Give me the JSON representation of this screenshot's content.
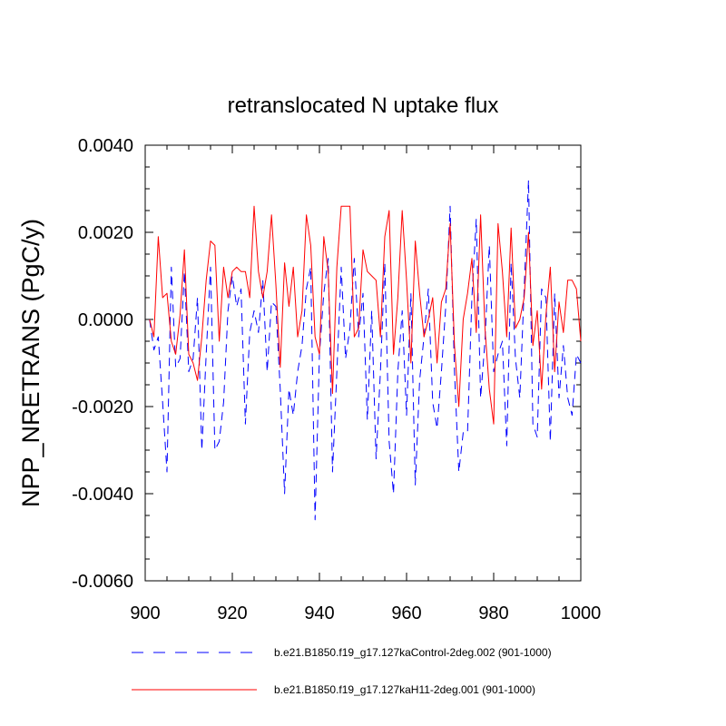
{
  "chart_data": {
    "type": "line",
    "title": "retranslocated N uptake flux",
    "xlabel": "",
    "ylabel": "NPP_NRETRANS  (PgC/y)",
    "xlim": [
      900,
      1000
    ],
    "ylim": [
      -0.006,
      0.004
    ],
    "x_ticks": [
      900,
      920,
      940,
      960,
      980,
      1000
    ],
    "x_tick_labels": [
      "900",
      "920",
      "940",
      "960",
      "980",
      "1000"
    ],
    "y_ticks": [
      -0.006,
      -0.004,
      -0.002,
      0.0,
      0.002,
      0.004
    ],
    "y_tick_labels": [
      "-0.0060",
      "-0.0040",
      "-0.0020",
      "0.0000",
      "0.0020",
      "0.0040"
    ],
    "x": [
      901,
      902,
      903,
      904,
      905,
      906,
      907,
      908,
      909,
      910,
      911,
      912,
      913,
      914,
      915,
      916,
      917,
      918,
      919,
      920,
      921,
      922,
      923,
      924,
      925,
      926,
      927,
      928,
      929,
      930,
      931,
      932,
      933,
      934,
      935,
      936,
      937,
      938,
      939,
      940,
      941,
      942,
      943,
      944,
      945,
      946,
      947,
      948,
      949,
      950,
      951,
      952,
      953,
      954,
      955,
      956,
      957,
      958,
      959,
      960,
      961,
      962,
      963,
      964,
      965,
      966,
      967,
      968,
      969,
      970,
      971,
      972,
      973,
      974,
      975,
      976,
      977,
      978,
      979,
      980,
      981,
      982,
      983,
      984,
      985,
      986,
      987,
      988,
      989,
      990,
      991,
      992,
      993,
      994,
      995,
      996,
      997,
      998,
      999,
      1000
    ],
    "series": [
      {
        "name": "b.e21.B1850.f19_g17.127kaControl-2deg.002 (901-1000)",
        "color": "#0000ff",
        "style": "dashed",
        "values": [
          0.0,
          -0.0007,
          -0.0004,
          -0.0019,
          -0.0035,
          0.0012,
          -0.0011,
          -0.0009,
          0.0011,
          -0.0012,
          -0.0009,
          0.0005,
          -0.003,
          -0.0008,
          0.0012,
          -0.003,
          -0.0028,
          -0.0019,
          0.0002,
          0.001,
          0.0003,
          0.0007,
          -0.0024,
          -0.0003,
          0.0002,
          -0.0003,
          0.0009,
          -0.0012,
          0.0004,
          0.0003,
          -0.0016,
          -0.004,
          -0.0016,
          -0.0022,
          -0.0012,
          -0.0006,
          0.0007,
          0.0012,
          -0.0046,
          -0.0008,
          0.0006,
          0.0014,
          -0.0035,
          -0.0012,
          0.0012,
          -0.0009,
          -0.0002,
          0.0014,
          -0.0004,
          0.0006,
          -0.0023,
          0.0002,
          -0.0032,
          -0.0012,
          0.0013,
          -0.0028,
          -0.004,
          -0.0012,
          0.0002,
          -0.0022,
          0.0006,
          -0.0038,
          -0.0014,
          -0.0004,
          0.0007,
          -0.0019,
          -0.0025,
          -0.0012,
          0.0003,
          0.0026,
          -0.0012,
          -0.0035,
          -0.0026,
          -0.0026,
          0.0005,
          0.0023,
          -0.0018,
          -0.0005,
          0.0017,
          -0.0012,
          -0.0008,
          -0.0005,
          -0.0029,
          0.0013,
          -0.0009,
          -0.0018,
          0.0007,
          0.0032,
          -0.0024,
          -0.0027,
          0.0007,
          0.0005,
          -0.0028,
          0.0006,
          -0.0018,
          -0.0006,
          -0.0018,
          -0.0022,
          -0.0008,
          -0.001
        ]
      },
      {
        "name": "b.e21.B1850.f19_g17.127kaH11-2deg.001 (901-1000)",
        "color": "#ff0000",
        "style": "solid",
        "values": [
          0.0,
          -0.0004,
          0.0019,
          0.0005,
          0.0006,
          -0.0005,
          -0.0008,
          0.0001,
          0.0016,
          -0.0008,
          -0.001,
          -0.0014,
          -0.0004,
          0.0009,
          0.0018,
          0.0017,
          -0.0005,
          0.0012,
          0.0005,
          0.0011,
          0.0012,
          0.0011,
          0.0011,
          0.0005,
          0.0026,
          0.0011,
          0.0005,
          0.0011,
          0.0024,
          0.0008,
          -0.0011,
          0.0013,
          0.0003,
          0.0012,
          -0.0004,
          0.0002,
          0.0024,
          0.0017,
          -0.0004,
          -0.0008,
          0.0019,
          0.0011,
          -0.0017,
          0.0012,
          0.0026,
          0.0026,
          0.0026,
          -0.0004,
          -0.0002,
          0.0016,
          0.0011,
          0.001,
          0.0009,
          -0.0004,
          0.0019,
          0.0025,
          -0.0008,
          0.0005,
          0.0025,
          0.0009,
          -0.001,
          0.0018,
          0.0006,
          -0.0004,
          0.0,
          0.0005,
          -0.001,
          0.0004,
          0.0007,
          0.0022,
          -0.0006,
          -0.002,
          0.0,
          0.0006,
          0.0014,
          -0.0003,
          0.0024,
          -0.0002,
          -0.0016,
          -0.0024,
          0.0022,
          0.0011,
          -0.0004,
          0.0021,
          -0.0002,
          0.0,
          0.0005,
          0.002,
          -0.0006,
          0.0002,
          -0.0016,
          0.0001,
          0.0012,
          -0.0012,
          0.0004,
          -0.0003,
          0.0009,
          0.0009,
          0.0007,
          -0.0005
        ]
      }
    ],
    "legend_position": "bottom"
  }
}
